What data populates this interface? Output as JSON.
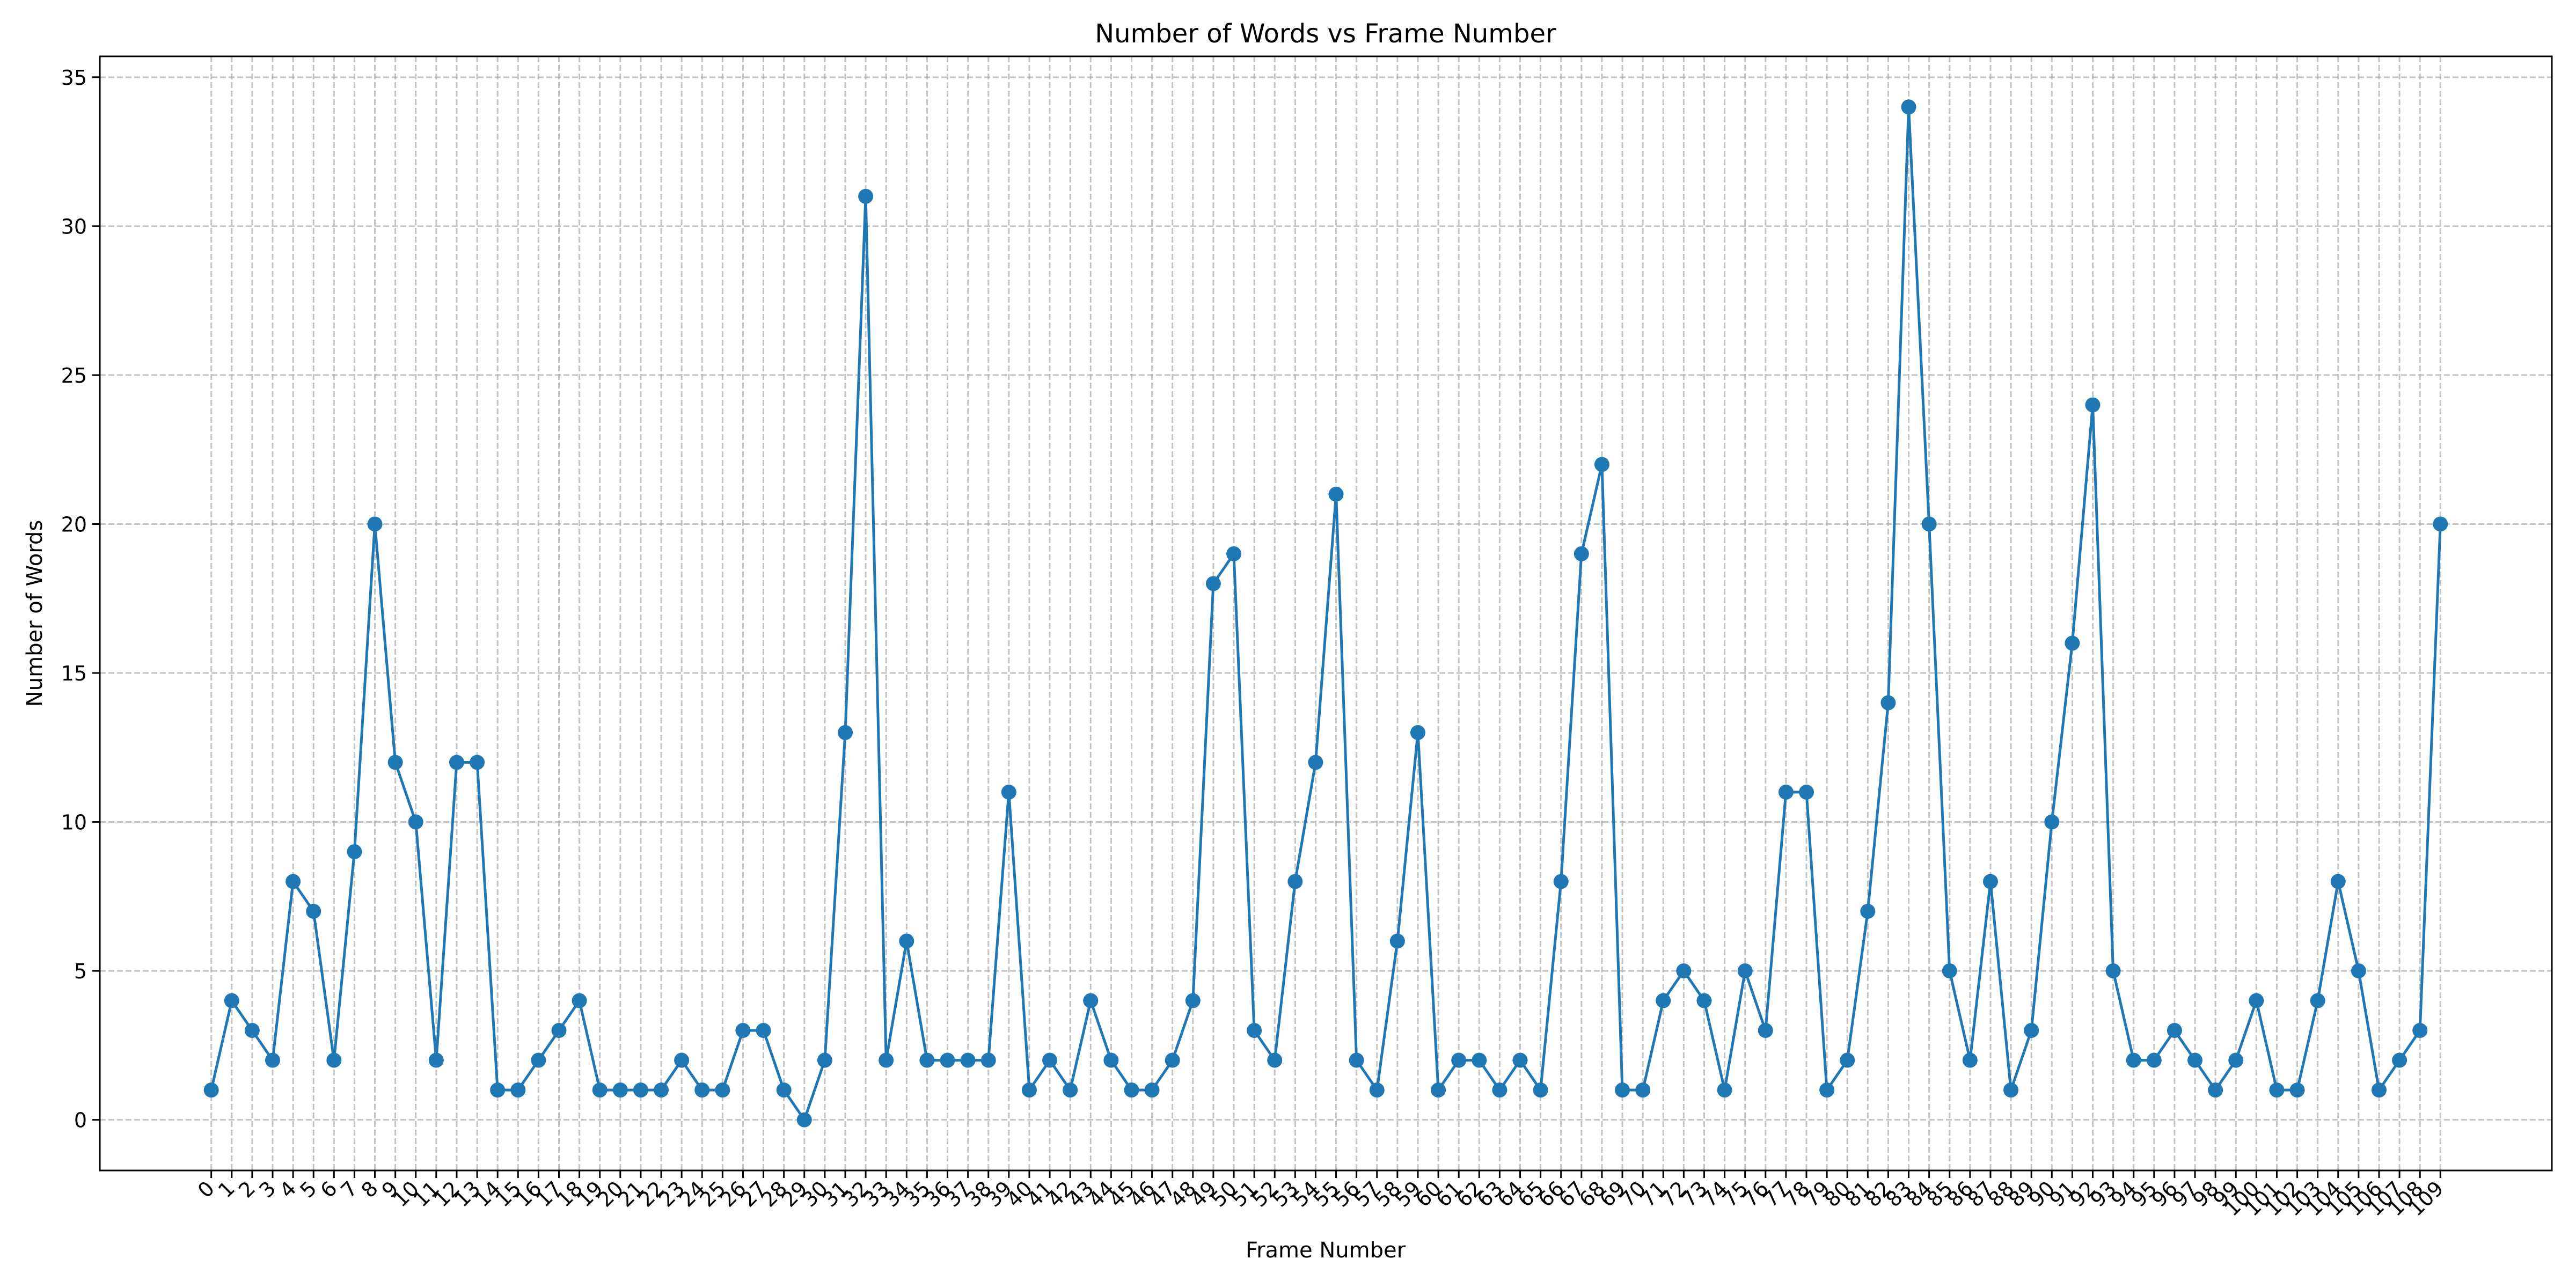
{
  "chart_data": {
    "type": "line",
    "title": "Number of Words vs Frame Number",
    "xlabel": "Frame Number",
    "ylabel": "Number of Words",
    "x": [
      0,
      1,
      2,
      3,
      4,
      5,
      6,
      7,
      8,
      9,
      10,
      11,
      12,
      13,
      14,
      15,
      16,
      17,
      18,
      19,
      20,
      21,
      22,
      23,
      24,
      25,
      26,
      27,
      28,
      29,
      30,
      31,
      32,
      33,
      34,
      35,
      36,
      37,
      38,
      39,
      40,
      41,
      42,
      43,
      44,
      45,
      46,
      47,
      48,
      49,
      50,
      51,
      52,
      53,
      54,
      55,
      56,
      57,
      58,
      59,
      60,
      61,
      62,
      63,
      64,
      65,
      66,
      67,
      68,
      69,
      70,
      71,
      72,
      73,
      74,
      75,
      76,
      77,
      78,
      79,
      80,
      81,
      82,
      83,
      84,
      85,
      86,
      87,
      88,
      89,
      90,
      91,
      92,
      93,
      94,
      95,
      96,
      97,
      98,
      99,
      100,
      101,
      102,
      103,
      104,
      105,
      106,
      107,
      108,
      109
    ],
    "series": [
      {
        "values": [
          1,
          4,
          3,
          2,
          8,
          7,
          2,
          9,
          20,
          12,
          10,
          2,
          12,
          12,
          1,
          1,
          2,
          3,
          4,
          1,
          1,
          1,
          1,
          2,
          1,
          1,
          3,
          3,
          1,
          0,
          2,
          13,
          31,
          2,
          6,
          2,
          2,
          2,
          2,
          11,
          1,
          2,
          1,
          4,
          2,
          1,
          1,
          2,
          4,
          18,
          19,
          3,
          2,
          8,
          12,
          21,
          2,
          1,
          6,
          13,
          1,
          2,
          2,
          1,
          2,
          1,
          8,
          19,
          22,
          1,
          1,
          4,
          5,
          4,
          1,
          5,
          3,
          11,
          11,
          1,
          2,
          7,
          14,
          34,
          20,
          5,
          2,
          8,
          1,
          3,
          10,
          16,
          24,
          5,
          2,
          2,
          3,
          2,
          1,
          2,
          4,
          1,
          1,
          4,
          8,
          5,
          1,
          2,
          3,
          20
        ]
      }
    ],
    "xticks": [
      0,
      1,
      2,
      3,
      4,
      5,
      6,
      7,
      8,
      9,
      10,
      11,
      12,
      13,
      14,
      15,
      16,
      17,
      18,
      19,
      20,
      21,
      22,
      23,
      24,
      25,
      26,
      27,
      28,
      29,
      30,
      31,
      32,
      33,
      34,
      35,
      36,
      37,
      38,
      39,
      40,
      41,
      42,
      43,
      44,
      45,
      46,
      47,
      48,
      49,
      50,
      51,
      52,
      53,
      54,
      55,
      56,
      57,
      58,
      59,
      60,
      61,
      62,
      63,
      64,
      65,
      66,
      67,
      68,
      69,
      70,
      71,
      72,
      73,
      74,
      75,
      76,
      77,
      78,
      79,
      80,
      81,
      82,
      83,
      84,
      85,
      86,
      87,
      88,
      89,
      90,
      91,
      92,
      93,
      94,
      95,
      96,
      97,
      98,
      99,
      100,
      101,
      102,
      103,
      104,
      105,
      106,
      107,
      108,
      109
    ],
    "yticks": [
      0,
      5,
      10,
      15,
      20,
      25,
      30,
      35
    ],
    "xlim": [
      -5.45,
      114.45
    ],
    "ylim": [
      -1.7,
      35.7
    ],
    "grid": true,
    "marker": "circle",
    "color": "#1f77b4"
  }
}
